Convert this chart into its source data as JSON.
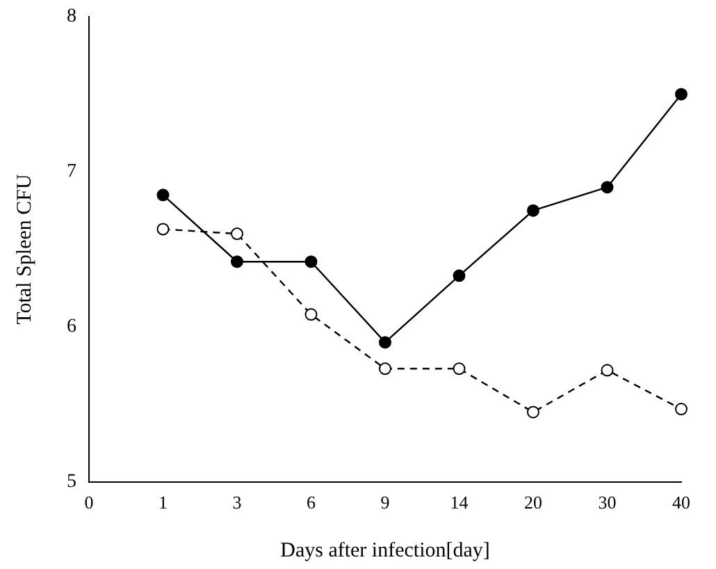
{
  "chart_data": {
    "type": "line",
    "xlabel": "Days after infection[day]",
    "ylabel": "Total Spleen CFU",
    "categories": [
      "0",
      "1",
      "3",
      "6",
      "9",
      "14",
      "20",
      "30",
      "40"
    ],
    "series": [
      {
        "color": "#000000",
        "marker": "circle",
        "line_style": "solid",
        "values": [
          null,
          6.85,
          6.42,
          6.42,
          5.9,
          6.33,
          6.75,
          6.9,
          7.5
        ]
      },
      {
        "color": "#000000",
        "marker": "circle-open",
        "line_style": "dashed",
        "values": [
          null,
          6.63,
          6.6,
          6.08,
          5.73,
          5.73,
          5.45,
          5.72,
          5.47
        ]
      }
    ],
    "ylim": [
      5,
      8
    ],
    "yticks": [
      5,
      6,
      7,
      8
    ],
    "grid": false,
    "legend": false
  }
}
